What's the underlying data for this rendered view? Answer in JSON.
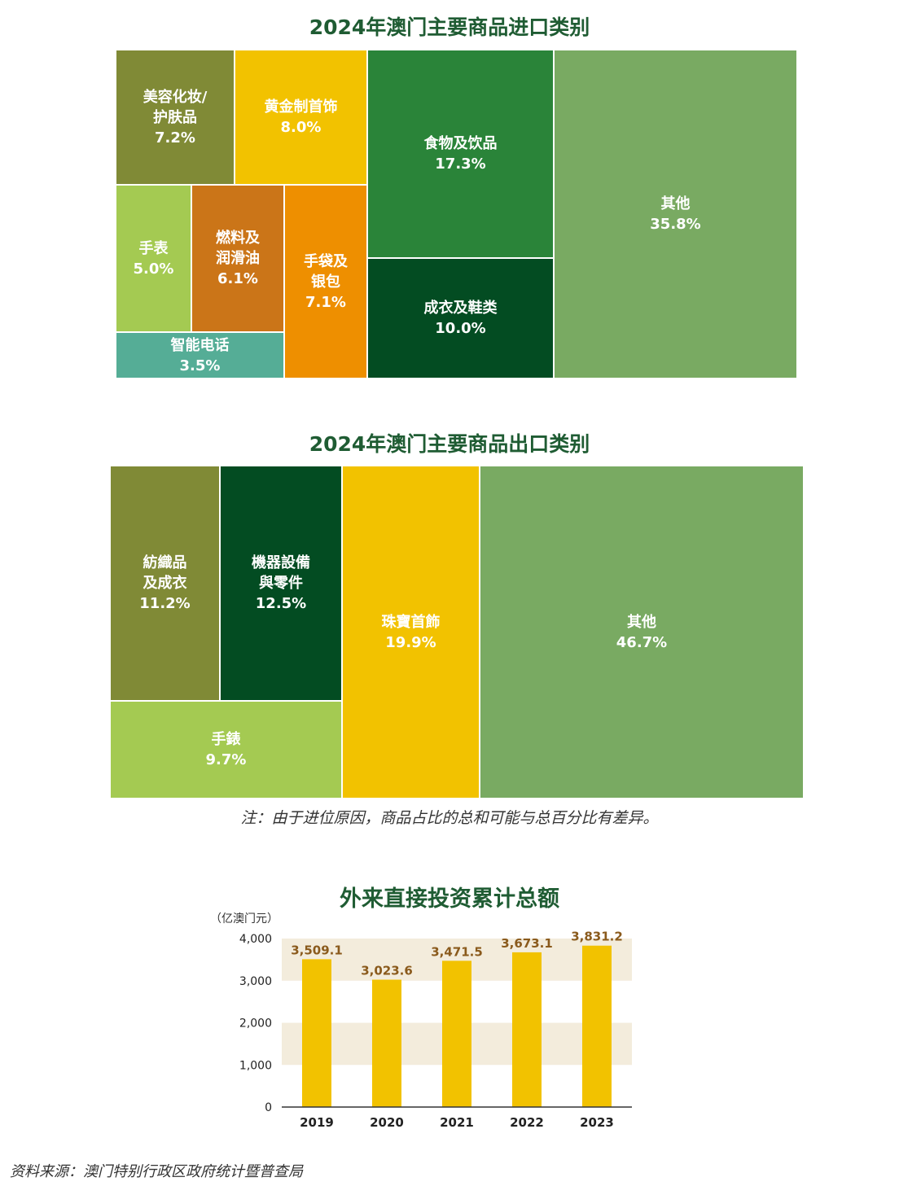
{
  "import_chart": {
    "title": "2024年澳门主要商品进口类别",
    "chart_data": {
      "type": "treemap",
      "title": "2024年澳门主要商品进口类别",
      "items": [
        {
          "name": "美容化妆/\n护肤品",
          "label": "7.2%",
          "value": 7.2,
          "color": "#808a36"
        },
        {
          "name": "黄金制首饰",
          "label": "8.0%",
          "value": 8.0,
          "color": "#f2c200"
        },
        {
          "name": "食物及饮品",
          "label": "17.3%",
          "value": 17.3,
          "color": "#2a8439"
        },
        {
          "name": "其他",
          "label": "35.8%",
          "value": 35.8,
          "color": "#79aa62"
        },
        {
          "name": "手表",
          "label": "5.0%",
          "value": 5.0,
          "color": "#a4ca52"
        },
        {
          "name": "燃料及\n润滑油",
          "label": "6.1%",
          "value": 6.1,
          "color": "#cb7518"
        },
        {
          "name": "手袋及\n银包",
          "label": "7.1%",
          "value": 7.1,
          "color": "#ee8f00"
        },
        {
          "name": "成衣及鞋类",
          "label": "10.0%",
          "value": 10.0,
          "color": "#034c22"
        },
        {
          "name": "智能电话",
          "label": "3.5%",
          "value": 3.5,
          "color": "#55ad96"
        }
      ]
    }
  },
  "export_chart": {
    "title": "2024年澳门主要商品出口类别",
    "chart_data": {
      "type": "treemap",
      "title": "2024年澳门主要商品出口类别",
      "items": [
        {
          "name": "紡織品\n及成衣",
          "label": "11.2%",
          "value": 11.2,
          "color": "#808a36"
        },
        {
          "name": "機器設備\n與零件",
          "label": "12.5%",
          "value": 12.5,
          "color": "#034c22"
        },
        {
          "name": "珠寶首飾",
          "label": "19.9%",
          "value": 19.9,
          "color": "#f2c200"
        },
        {
          "name": "其他",
          "label": "46.7%",
          "value": 46.7,
          "color": "#79aa62"
        },
        {
          "name": "手錶",
          "label": "9.7%",
          "value": 9.7,
          "color": "#a4ca52"
        }
      ]
    }
  },
  "note": "注：由于进位原因，商品占比的总和可能与总百分比有差异。",
  "fdi_chart": {
    "title": "外来直接投资累计总额",
    "unit": "（亿澳门元）",
    "chart_data": {
      "type": "bar",
      "title": "外来直接投资累计总额",
      "categories": [
        "2019",
        "2020",
        "2021",
        "2022",
        "2023"
      ],
      "values": [
        3509.1,
        3023.6,
        3471.5,
        3673.1,
        3831.2
      ],
      "value_labels": [
        "3,509.1",
        "3,023.6",
        "3,471.5",
        "3,673.1",
        "3,831.2"
      ],
      "yticks": [
        0,
        1000,
        2000,
        3000,
        4000
      ],
      "ytick_labels": [
        "0",
        "1,000",
        "2,000",
        "3,000",
        "4,000"
      ],
      "ylim": [
        0,
        4000
      ],
      "bar_color": "#f2c200",
      "label_color": "#8a5a1c",
      "band_color": "#f3ecdc"
    }
  },
  "source": "资料来源：澳门特别行政区政府统计暨普查局"
}
